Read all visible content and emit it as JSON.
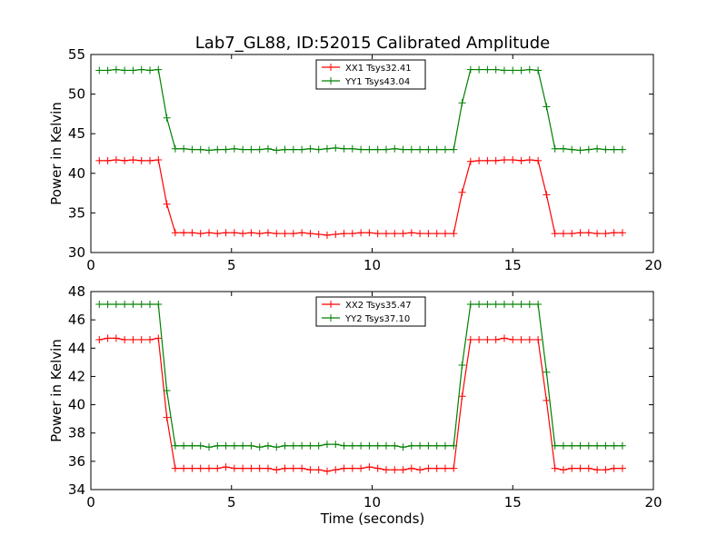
{
  "chart_data": [
    {
      "type": "line",
      "title": "Lab7_GL88, ID:52015 Calibrated Amplitude",
      "xlabel": "",
      "ylabel": "Power in Kelvin",
      "xlim": [
        0,
        20
      ],
      "ylim": [
        30,
        55
      ],
      "xticks": [
        "0",
        "5",
        "10",
        "15",
        "20"
      ],
      "yticks": [
        "30",
        "35",
        "40",
        "45",
        "50",
        "55"
      ],
      "xtick_values": [
        0,
        5,
        10,
        15,
        20
      ],
      "ytick_values": [
        30,
        35,
        40,
        45,
        50,
        55
      ],
      "grid": false,
      "legend_position": "top-center",
      "x": [
        0.3,
        0.6,
        0.9,
        1.2,
        1.5,
        1.8,
        2.1,
        2.4,
        2.7,
        3.0,
        3.3,
        3.6,
        3.9,
        4.2,
        4.5,
        4.8,
        5.1,
        5.4,
        5.7,
        6.0,
        6.3,
        6.6,
        6.9,
        7.2,
        7.5,
        7.8,
        8.1,
        8.4,
        8.7,
        9.0,
        9.3,
        9.6,
        9.9,
        10.2,
        10.5,
        10.8,
        11.1,
        11.4,
        11.7,
        12.0,
        12.3,
        12.6,
        12.9,
        13.2,
        13.5,
        13.8,
        14.1,
        14.4,
        14.7,
        15.0,
        15.3,
        15.6,
        15.9,
        16.2,
        16.5,
        16.8,
        17.1,
        17.4,
        17.7,
        18.0,
        18.3,
        18.6,
        18.9
      ],
      "series": [
        {
          "name": "XX1 Tsys32.41",
          "color": "#ff0000",
          "values": [
            41.6,
            41.6,
            41.7,
            41.6,
            41.7,
            41.6,
            41.6,
            41.7,
            36.1,
            32.5,
            32.5,
            32.5,
            32.4,
            32.5,
            32.4,
            32.5,
            32.5,
            32.4,
            32.5,
            32.4,
            32.5,
            32.4,
            32.4,
            32.4,
            32.5,
            32.4,
            32.3,
            32.2,
            32.3,
            32.4,
            32.4,
            32.5,
            32.5,
            32.4,
            32.4,
            32.4,
            32.4,
            32.5,
            32.4,
            32.4,
            32.4,
            32.4,
            32.4,
            37.6,
            41.5,
            41.6,
            41.6,
            41.6,
            41.7,
            41.7,
            41.6,
            41.7,
            41.6,
            37.3,
            32.4,
            32.4,
            32.4,
            32.5,
            32.5,
            32.4,
            32.4,
            32.5,
            32.5
          ]
        },
        {
          "name": "YY1 Tsys43.04",
          "color": "#008000",
          "values": [
            53.0,
            53.0,
            53.1,
            53.0,
            53.0,
            53.1,
            53.0,
            53.1,
            47.0,
            43.1,
            43.1,
            43.0,
            43.0,
            42.9,
            43.0,
            43.0,
            43.1,
            43.0,
            43.0,
            43.0,
            43.1,
            42.9,
            43.0,
            43.0,
            43.0,
            43.1,
            43.0,
            43.1,
            43.2,
            43.1,
            43.1,
            43.0,
            43.0,
            43.0,
            43.0,
            43.1,
            43.0,
            43.0,
            43.0,
            43.0,
            43.0,
            43.0,
            43.0,
            48.9,
            53.1,
            53.1,
            53.1,
            53.1,
            53.0,
            53.0,
            53.0,
            53.1,
            53.0,
            48.4,
            43.1,
            43.1,
            43.0,
            42.9,
            43.0,
            43.1,
            43.0,
            43.0,
            43.0
          ]
        }
      ]
    },
    {
      "type": "line",
      "title": "",
      "xlabel": "Time (seconds)",
      "ylabel": "Power in Kelvin",
      "xlim": [
        0,
        20
      ],
      "ylim": [
        34,
        48
      ],
      "xticks": [
        "0",
        "5",
        "10",
        "15",
        "20"
      ],
      "yticks": [
        "34",
        "36",
        "38",
        "40",
        "42",
        "44",
        "46",
        "48"
      ],
      "xtick_values": [
        0,
        5,
        10,
        15,
        20
      ],
      "ytick_values": [
        34,
        36,
        38,
        40,
        42,
        44,
        46,
        48
      ],
      "grid": false,
      "legend_position": "top-center",
      "x": [
        0.3,
        0.6,
        0.9,
        1.2,
        1.5,
        1.8,
        2.1,
        2.4,
        2.7,
        3.0,
        3.3,
        3.6,
        3.9,
        4.2,
        4.5,
        4.8,
        5.1,
        5.4,
        5.7,
        6.0,
        6.3,
        6.6,
        6.9,
        7.2,
        7.5,
        7.8,
        8.1,
        8.4,
        8.7,
        9.0,
        9.3,
        9.6,
        9.9,
        10.2,
        10.5,
        10.8,
        11.1,
        11.4,
        11.7,
        12.0,
        12.3,
        12.6,
        12.9,
        13.2,
        13.5,
        13.8,
        14.1,
        14.4,
        14.7,
        15.0,
        15.3,
        15.6,
        15.9,
        16.2,
        16.5,
        16.8,
        17.1,
        17.4,
        17.7,
        18.0,
        18.3,
        18.6,
        18.9
      ],
      "series": [
        {
          "name": "XX2 Tsys35.47",
          "color": "#ff0000",
          "values": [
            44.6,
            44.7,
            44.7,
            44.6,
            44.6,
            44.6,
            44.6,
            44.7,
            39.1,
            35.5,
            35.5,
            35.5,
            35.5,
            35.5,
            35.5,
            35.6,
            35.5,
            35.5,
            35.5,
            35.5,
            35.5,
            35.4,
            35.5,
            35.5,
            35.5,
            35.4,
            35.4,
            35.3,
            35.4,
            35.5,
            35.5,
            35.5,
            35.6,
            35.5,
            35.4,
            35.4,
            35.4,
            35.5,
            35.4,
            35.5,
            35.5,
            35.5,
            35.5,
            40.6,
            44.6,
            44.6,
            44.6,
            44.6,
            44.7,
            44.6,
            44.6,
            44.6,
            44.6,
            40.3,
            35.5,
            35.4,
            35.5,
            35.5,
            35.5,
            35.4,
            35.4,
            35.5,
            35.5
          ]
        },
        {
          "name": "YY2 Tsys37.10",
          "color": "#008000",
          "values": [
            47.1,
            47.1,
            47.1,
            47.1,
            47.1,
            47.1,
            47.1,
            47.1,
            41.0,
            37.1,
            37.1,
            37.1,
            37.1,
            37.0,
            37.1,
            37.1,
            37.1,
            37.1,
            37.1,
            37.0,
            37.1,
            37.0,
            37.1,
            37.1,
            37.1,
            37.1,
            37.1,
            37.2,
            37.2,
            37.1,
            37.1,
            37.1,
            37.1,
            37.1,
            37.1,
            37.1,
            37.0,
            37.1,
            37.1,
            37.1,
            37.1,
            37.1,
            37.1,
            42.8,
            47.1,
            47.1,
            47.1,
            47.1,
            47.1,
            47.1,
            47.1,
            47.1,
            47.1,
            42.3,
            37.1,
            37.1,
            37.1,
            37.1,
            37.1,
            37.1,
            37.1,
            37.1,
            37.1
          ]
        }
      ]
    }
  ]
}
